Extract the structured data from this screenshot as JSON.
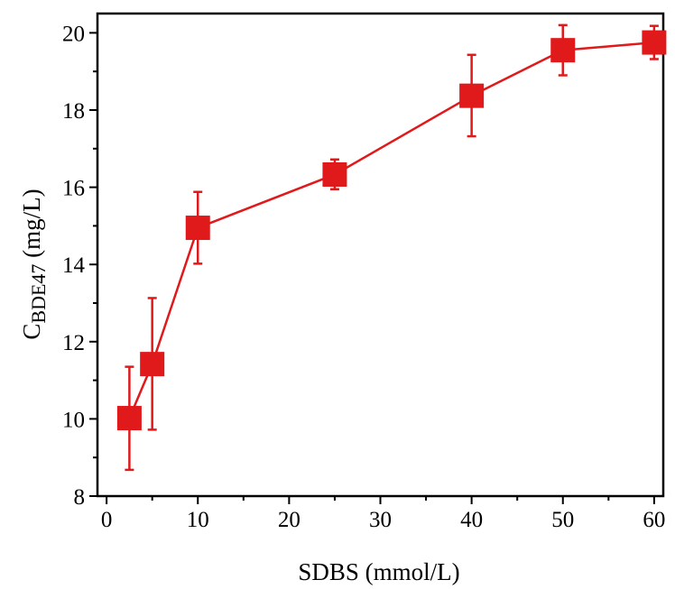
{
  "chart_data": {
    "type": "line",
    "title": "",
    "xlabel": "SDBS (mmol/L)",
    "ylabel": {
      "main": "C",
      "subscript": "BDE47",
      "suffix": " (mg/L)"
    },
    "xlim": [
      -1,
      61
    ],
    "ylim": [
      8,
      20.5
    ],
    "xticks": [
      0,
      10,
      20,
      30,
      40,
      50,
      60
    ],
    "yticks": [
      8,
      10,
      12,
      14,
      16,
      18,
      20
    ],
    "x_minor_step": 5,
    "y_minor_step": 1,
    "grid": false,
    "legend": "none",
    "series": [
      {
        "color": "#e0191b",
        "marker": "square",
        "x": [
          2.5,
          5,
          10,
          25,
          40,
          50,
          60
        ],
        "y": [
          10.02,
          11.42,
          14.95,
          16.33,
          18.37,
          19.55,
          19.75
        ],
        "err_low": [
          8.68,
          9.72,
          14.02,
          15.95,
          17.32,
          18.9,
          19.32
        ],
        "err_high": [
          11.35,
          13.13,
          15.88,
          16.72,
          19.43,
          20.2,
          20.18
        ]
      }
    ]
  }
}
